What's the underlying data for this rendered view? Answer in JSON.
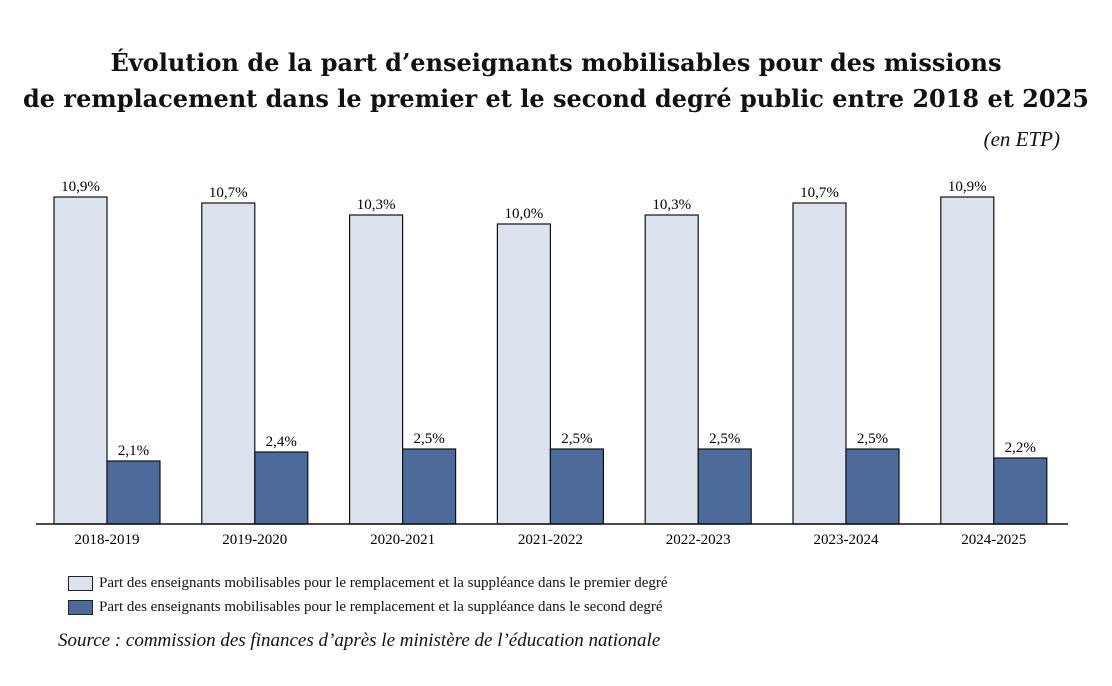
{
  "title_line1": "Évolution de la part d’enseignants mobilisables pour des missions",
  "title_line2": "de remplacement dans le premier et le second degré public entre 2018 et 2025",
  "unit": "(en ETP)",
  "source": "Source : commission des finances d’après le ministère de l’éducation nationale",
  "colors": {
    "premier": "#dde3ee",
    "second": "#4d6b9a",
    "axis": "#111111"
  },
  "chart_data": {
    "type": "bar",
    "categories": [
      "2018-2019",
      "2019-2020",
      "2020-2021",
      "2021-2022",
      "2022-2023",
      "2023-2024",
      "2024-2025"
    ],
    "series": [
      {
        "name": "Part des enseignants mobilisables pour le remplacement et la suppléance dans le premier degré",
        "values": [
          10.9,
          10.7,
          10.3,
          10.0,
          10.3,
          10.7,
          10.9
        ]
      },
      {
        "name": "Part des enseignants mobilisables pour le remplacement et la suppléance dans le second degré",
        "values": [
          2.1,
          2.4,
          2.5,
          2.5,
          2.5,
          2.5,
          2.2
        ]
      }
    ],
    "value_labels": [
      [
        "10,9%",
        "10,7%",
        "10,3%",
        "10,0%",
        "10,3%",
        "10,7%",
        "10,9%"
      ],
      [
        "2,1%",
        "2,4%",
        "2,5%",
        "2,5%",
        "2,5%",
        "2,5%",
        "2,2%"
      ]
    ],
    "ylim": [
      0,
      11
    ],
    "grid": false,
    "legend_position": "bottom-left"
  }
}
